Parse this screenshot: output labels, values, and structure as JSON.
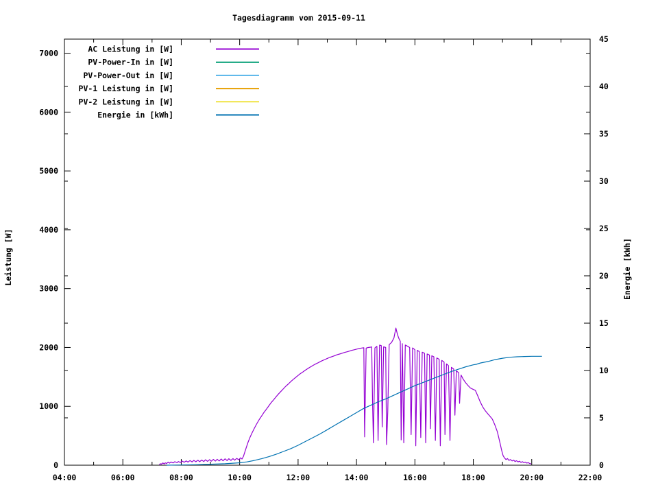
{
  "chart_data": {
    "type": "line",
    "title": "Tagesdiagramm vom 2015-09-11",
    "y1label": "Leistung [W]",
    "y2label": "Energie [kWh]",
    "x_range": [
      4,
      22
    ],
    "y1_range": [
      0,
      7240
    ],
    "y2_range": [
      0,
      45
    ],
    "grid": false,
    "legend_position": "top-left-inside",
    "x_ticks": [
      {
        "h": 4,
        "label": "04:00"
      },
      {
        "h": 6,
        "label": "06:00"
      },
      {
        "h": 8,
        "label": "08:00"
      },
      {
        "h": 10,
        "label": "10:00"
      },
      {
        "h": 12,
        "label": "12:00"
      },
      {
        "h": 14,
        "label": "14:00"
      },
      {
        "h": 16,
        "label": "16:00"
      },
      {
        "h": 18,
        "label": "18:00"
      },
      {
        "h": 20,
        "label": "20:00"
      },
      {
        "h": 22,
        "label": "22:00"
      }
    ],
    "x_minor_hours": [
      5,
      7,
      9,
      11,
      13,
      15,
      17,
      19,
      21
    ],
    "y1_ticks": [
      0,
      1000,
      2000,
      3000,
      4000,
      5000,
      6000,
      7000
    ],
    "y2_ticks": [
      0,
      5,
      10,
      15,
      20,
      25,
      30,
      35,
      40,
      45
    ],
    "series": [
      {
        "name": "AC Leistung in [W]",
        "color": "#9400D3",
        "axis": "y1",
        "points": [
          [
            7.25,
            8
          ],
          [
            7.28,
            25
          ],
          [
            7.32,
            18
          ],
          [
            7.37,
            38
          ],
          [
            7.42,
            22
          ],
          [
            7.45,
            40
          ],
          [
            7.5,
            28
          ],
          [
            7.55,
            52
          ],
          [
            7.6,
            35
          ],
          [
            7.65,
            55
          ],
          [
            7.72,
            38
          ],
          [
            7.78,
            60
          ],
          [
            7.85,
            42
          ],
          [
            7.9,
            62
          ],
          [
            7.97,
            45
          ],
          [
            8.03,
            70
          ],
          [
            8.1,
            50
          ],
          [
            8.17,
            72
          ],
          [
            8.23,
            52
          ],
          [
            8.3,
            78
          ],
          [
            8.37,
            55
          ],
          [
            8.43,
            82
          ],
          [
            8.5,
            58
          ],
          [
            8.57,
            85
          ],
          [
            8.63,
            60
          ],
          [
            8.7,
            88
          ],
          [
            8.77,
            62
          ],
          [
            8.83,
            92
          ],
          [
            8.9,
            65
          ],
          [
            8.97,
            95
          ],
          [
            9.03,
            68
          ],
          [
            9.1,
            98
          ],
          [
            9.17,
            70
          ],
          [
            9.23,
            100
          ],
          [
            9.3,
            72
          ],
          [
            9.37,
            105
          ],
          [
            9.43,
            75
          ],
          [
            9.5,
            108
          ],
          [
            9.57,
            78
          ],
          [
            9.63,
            110
          ],
          [
            9.7,
            82
          ],
          [
            9.77,
            112
          ],
          [
            9.83,
            85
          ],
          [
            9.9,
            115
          ],
          [
            9.97,
            92
          ],
          [
            10.03,
            125
          ],
          [
            10.08,
            105
          ],
          [
            10.13,
            150
          ],
          [
            10.2,
            260
          ],
          [
            10.28,
            380
          ],
          [
            10.35,
            470
          ],
          [
            10.43,
            555
          ],
          [
            10.5,
            625
          ],
          [
            10.58,
            700
          ],
          [
            10.67,
            775
          ],
          [
            10.75,
            835
          ],
          [
            10.83,
            895
          ],
          [
            10.92,
            955
          ],
          [
            11.0,
            1010
          ],
          [
            11.08,
            1065
          ],
          [
            11.17,
            1115
          ],
          [
            11.25,
            1165
          ],
          [
            11.33,
            1210
          ],
          [
            11.42,
            1258
          ],
          [
            11.5,
            1300
          ],
          [
            11.58,
            1342
          ],
          [
            11.67,
            1382
          ],
          [
            11.75,
            1420
          ],
          [
            11.83,
            1455
          ],
          [
            11.92,
            1492
          ],
          [
            12.0,
            1525
          ],
          [
            12.08,
            1556
          ],
          [
            12.17,
            1586
          ],
          [
            12.25,
            1615
          ],
          [
            12.33,
            1642
          ],
          [
            12.42,
            1668
          ],
          [
            12.5,
            1692
          ],
          [
            12.58,
            1715
          ],
          [
            12.67,
            1736
          ],
          [
            12.75,
            1757
          ],
          [
            12.83,
            1777
          ],
          [
            12.92,
            1796
          ],
          [
            13.0,
            1814
          ],
          [
            13.08,
            1830
          ],
          [
            13.17,
            1846
          ],
          [
            13.25,
            1861
          ],
          [
            13.33,
            1876
          ],
          [
            13.42,
            1889
          ],
          [
            13.5,
            1902
          ],
          [
            13.58,
            1914
          ],
          [
            13.67,
            1926
          ],
          [
            13.75,
            1938
          ],
          [
            13.83,
            1950
          ],
          [
            13.92,
            1961
          ],
          [
            14.0,
            1971
          ],
          [
            14.08,
            1981
          ],
          [
            14.17,
            1990
          ],
          [
            14.25,
            1995
          ],
          [
            14.28,
            480
          ],
          [
            14.33,
            1990
          ],
          [
            14.4,
            2000
          ],
          [
            14.48,
            2005
          ],
          [
            14.52,
            2010
          ],
          [
            14.55,
            1100
          ],
          [
            14.58,
            380
          ],
          [
            14.63,
            1992
          ],
          [
            14.7,
            2020
          ],
          [
            14.74,
            420
          ],
          [
            14.79,
            2040
          ],
          [
            14.85,
            2032
          ],
          [
            14.88,
            650
          ],
          [
            14.93,
            2012
          ],
          [
            15.0,
            2000
          ],
          [
            15.03,
            350
          ],
          [
            15.07,
            900
          ],
          [
            15.12,
            2050
          ],
          [
            15.2,
            2085
          ],
          [
            15.28,
            2160
          ],
          [
            15.35,
            2330
          ],
          [
            15.4,
            2225
          ],
          [
            15.45,
            2155
          ],
          [
            15.5,
            2105
          ],
          [
            15.53,
            430
          ],
          [
            15.57,
            2065
          ],
          [
            15.62,
            380
          ],
          [
            15.67,
            2042
          ],
          [
            15.75,
            2020
          ],
          [
            15.82,
            2000
          ],
          [
            15.87,
            520
          ],
          [
            15.92,
            1992
          ],
          [
            16.0,
            1962
          ],
          [
            16.03,
            330
          ],
          [
            16.08,
            1950
          ],
          [
            16.15,
            1932
          ],
          [
            16.2,
            470
          ],
          [
            16.25,
            1920
          ],
          [
            16.33,
            1902
          ],
          [
            16.37,
            380
          ],
          [
            16.42,
            1890
          ],
          [
            16.5,
            1872
          ],
          [
            16.53,
            620
          ],
          [
            16.58,
            1860
          ],
          [
            16.65,
            1842
          ],
          [
            16.7,
            420
          ],
          [
            16.75,
            1822
          ],
          [
            16.83,
            1800
          ],
          [
            16.87,
            330
          ],
          [
            16.92,
            1780
          ],
          [
            17.0,
            1752
          ],
          [
            17.03,
            520
          ],
          [
            17.08,
            1722
          ],
          [
            17.15,
            1692
          ],
          [
            17.2,
            420
          ],
          [
            17.25,
            1662
          ],
          [
            17.33,
            1632
          ],
          [
            17.37,
            850
          ],
          [
            17.42,
            1602
          ],
          [
            17.5,
            1572
          ],
          [
            17.53,
            1050
          ],
          [
            17.58,
            1532
          ],
          [
            17.65,
            1465
          ],
          [
            17.73,
            1405
          ],
          [
            17.82,
            1352
          ],
          [
            17.9,
            1312
          ],
          [
            17.98,
            1292
          ],
          [
            18.07,
            1272
          ],
          [
            18.15,
            1182
          ],
          [
            18.23,
            1082
          ],
          [
            18.32,
            992
          ],
          [
            18.4,
            932
          ],
          [
            18.48,
            882
          ],
          [
            18.57,
            832
          ],
          [
            18.65,
            782
          ],
          [
            18.73,
            692
          ],
          [
            18.82,
            572
          ],
          [
            18.87,
            472
          ],
          [
            18.92,
            362
          ],
          [
            18.97,
            252
          ],
          [
            19.02,
            162
          ],
          [
            19.07,
            122
          ],
          [
            19.12,
            96
          ],
          [
            19.17,
            112
          ],
          [
            19.22,
            82
          ],
          [
            19.27,
            96
          ],
          [
            19.33,
            72
          ],
          [
            19.38,
            86
          ],
          [
            19.43,
            62
          ],
          [
            19.48,
            76
          ],
          [
            19.53,
            56
          ],
          [
            19.58,
            68
          ],
          [
            19.63,
            48
          ],
          [
            19.68,
            60
          ],
          [
            19.73,
            43
          ],
          [
            19.78,
            52
          ],
          [
            19.83,
            36
          ],
          [
            19.88,
            43
          ],
          [
            19.93,
            28
          ],
          [
            19.98,
            22
          ]
        ]
      },
      {
        "name": "PV-Power-In in [W]",
        "color": "#009E73",
        "axis": "y1",
        "points": []
      },
      {
        "name": "PV-Power-Out in [W]",
        "color": "#56B4E9",
        "axis": "y1",
        "points": []
      },
      {
        "name": "PV-1 Leistung in [W]",
        "color": "#E69F00",
        "axis": "y1",
        "points": []
      },
      {
        "name": "PV-2 Leistung in [W]",
        "color": "#F0E442",
        "axis": "y1",
        "points": []
      },
      {
        "name": "Energie in [kWh]",
        "color": "#0072B2",
        "axis": "y2",
        "points": [
          [
            7.5,
            0
          ],
          [
            8.5,
            0.05
          ],
          [
            9.0,
            0.1
          ],
          [
            9.5,
            0.15
          ],
          [
            10.0,
            0.25
          ],
          [
            10.25,
            0.35
          ],
          [
            10.5,
            0.5
          ],
          [
            10.75,
            0.68
          ],
          [
            11.0,
            0.9
          ],
          [
            11.25,
            1.15
          ],
          [
            11.5,
            1.45
          ],
          [
            11.75,
            1.75
          ],
          [
            12.0,
            2.1
          ],
          [
            12.25,
            2.5
          ],
          [
            12.5,
            2.9
          ],
          [
            12.75,
            3.3
          ],
          [
            13.0,
            3.75
          ],
          [
            13.25,
            4.2
          ],
          [
            13.5,
            4.65
          ],
          [
            13.75,
            5.1
          ],
          [
            14.0,
            5.55
          ],
          [
            14.25,
            6.0
          ],
          [
            14.5,
            6.35
          ],
          [
            14.75,
            6.7
          ],
          [
            15.0,
            7.0
          ],
          [
            15.25,
            7.35
          ],
          [
            15.5,
            7.7
          ],
          [
            15.75,
            8.05
          ],
          [
            16.0,
            8.4
          ],
          [
            16.25,
            8.7
          ],
          [
            16.5,
            9.0
          ],
          [
            16.75,
            9.3
          ],
          [
            17.0,
            9.6
          ],
          [
            17.25,
            9.9
          ],
          [
            17.5,
            10.15
          ],
          [
            17.75,
            10.4
          ],
          [
            18.0,
            10.6
          ],
          [
            18.1,
            10.65
          ],
          [
            18.25,
            10.8
          ],
          [
            18.5,
            10.95
          ],
          [
            18.75,
            11.15
          ],
          [
            19.0,
            11.3
          ],
          [
            19.25,
            11.4
          ],
          [
            19.5,
            11.45
          ],
          [
            19.75,
            11.48
          ],
          [
            20.0,
            11.5
          ],
          [
            20.35,
            11.5
          ]
        ]
      }
    ]
  }
}
